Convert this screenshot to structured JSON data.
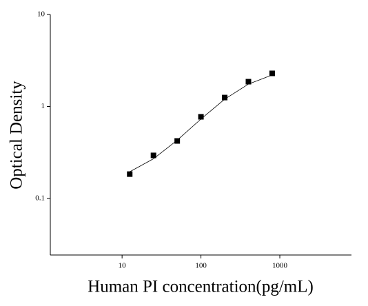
{
  "chart_data": {
    "type": "scatter",
    "x_label": "Human PI concentration(pg/mL)",
    "y_label": "Optical Density",
    "log_x": true,
    "log_y": true,
    "xlim": [
      1.23,
      8100
    ],
    "ylim": [
      0.0243,
      10
    ],
    "xticks": [
      10,
      100,
      1000
    ],
    "yticks": [
      0.1,
      1,
      10
    ],
    "series": [
      {
        "kind": "points",
        "color": "#000000",
        "x": [
          12.5,
          25,
          50,
          100,
          200,
          400,
          800
        ],
        "values": [
          0.184,
          0.294,
          0.422,
          0.772,
          1.25,
          1.86,
          2.29
        ]
      },
      {
        "kind": "curve",
        "color": "#000000",
        "x": [
          12.5,
          25,
          50,
          100,
          200,
          400,
          800
        ],
        "values": [
          0.195,
          0.27,
          0.43,
          0.73,
          1.2,
          1.75,
          2.2
        ]
      }
    ]
  }
}
